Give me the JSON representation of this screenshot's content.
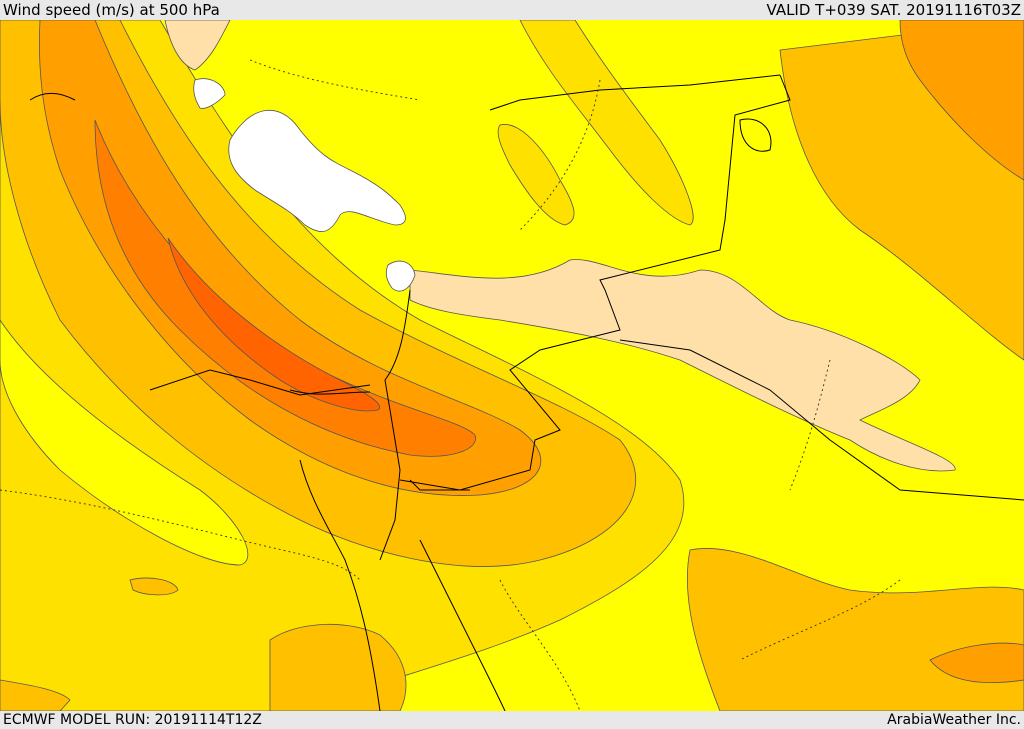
{
  "header": {
    "title": "Wind speed (m/s) at 500 hPa",
    "valid": "VALID T+039 SAT. 20191116T03Z"
  },
  "footer": {
    "model_run": "ECMWF MODEL RUN: 20191114T12Z",
    "credit": "ArabiaWeather Inc."
  },
  "colors": {
    "background_field": "#ffff00",
    "band_light": "#ffe100",
    "band_mid": "#ffc000",
    "band_orange": "#ffa000",
    "band_deep": "#ff8000",
    "band_core": "#ff6400",
    "low_wind": "#ffe0a8",
    "calm": "#ffffff"
  }
}
